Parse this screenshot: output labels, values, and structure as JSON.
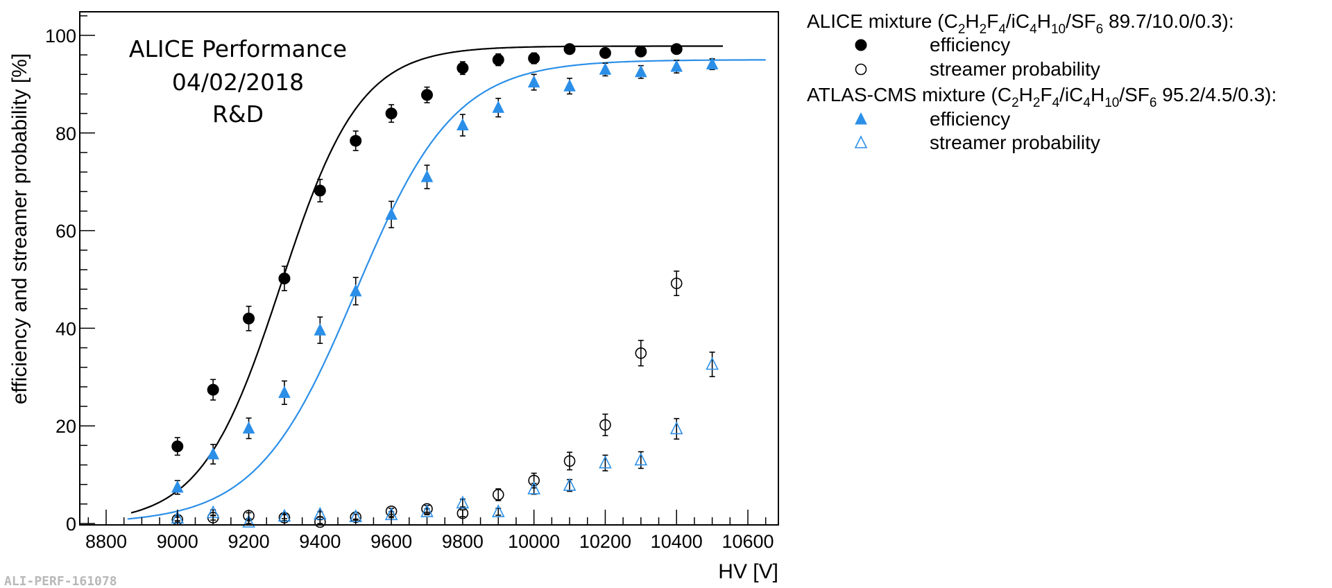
{
  "chart_data": {
    "type": "scatter",
    "title": "",
    "xlabel": "HV [V]",
    "ylabel": "efficiency and streamer probability [%]",
    "xlim": [
      8740,
      10690
    ],
    "ylim": [
      0,
      105
    ],
    "xticks": [
      8800,
      9000,
      9200,
      9400,
      9600,
      9800,
      10000,
      10200,
      10400,
      10600
    ],
    "yticks": [
      0,
      20,
      40,
      60,
      80,
      100
    ],
    "annotations": [
      "ALICE Performance",
      "04/02/2018",
      "R&D"
    ],
    "footer": "ALI-PERF-161078",
    "legend": {
      "placement": "right",
      "groups": [
        {
          "title": "ALICE mixture (C2H2F4/iC4H10/SF6 89.7/10.0/0.3):",
          "title_parts": [
            "ALICE mixture (C",
            "2",
            "H",
            "2",
            "F",
            "4",
            "/iC",
            "4",
            "H",
            "10",
            "/SF",
            "6",
            " 89.7/10.0/0.3):"
          ],
          "entries": [
            {
              "label": "efficiency",
              "marker": "filled-circle",
              "color": "#000000"
            },
            {
              "label": "streamer probability",
              "marker": "open-circle",
              "color": "#000000"
            }
          ]
        },
        {
          "title": "ATLAS-CMS mixture (C2H2F4/iC4H10/SF6 95.2/4.5/0.3):",
          "title_parts": [
            "ATLAS-CMS mixture (C",
            "2",
            "H",
            "2",
            "F",
            "4",
            "/iC",
            "4",
            "H",
            "10",
            "/SF",
            "6",
            " 95.2/4.5/0.3):"
          ],
          "entries": [
            {
              "label": "efficiency",
              "marker": "filled-triangle",
              "color": "#2b8fe8"
            },
            {
              "label": "streamer probability",
              "marker": "open-triangle",
              "color": "#2b8fe8"
            }
          ]
        }
      ]
    },
    "series": [
      {
        "name": "ALICE efficiency",
        "marker": "filled-circle",
        "color": "#000000",
        "points": [
          {
            "x": 9000,
            "y": 15.8,
            "err": 1.8
          },
          {
            "x": 9100,
            "y": 27.4,
            "err": 2.1
          },
          {
            "x": 9200,
            "y": 42.0,
            "err": 2.5
          },
          {
            "x": 9300,
            "y": 50.2,
            "err": 2.5
          },
          {
            "x": 9400,
            "y": 68.2,
            "err": 2.3
          },
          {
            "x": 9500,
            "y": 78.4,
            "err": 2.0
          },
          {
            "x": 9600,
            "y": 84.0,
            "err": 1.8
          },
          {
            "x": 9700,
            "y": 87.8,
            "err": 1.6
          },
          {
            "x": 9800,
            "y": 93.3,
            "err": 1.3
          },
          {
            "x": 9900,
            "y": 95.0,
            "err": 1.2
          },
          {
            "x": 10000,
            "y": 95.3,
            "err": 1.1
          },
          {
            "x": 10100,
            "y": 97.2,
            "err": 0.6
          },
          {
            "x": 10200,
            "y": 96.4,
            "err": 0.6
          },
          {
            "x": 10300,
            "y": 96.7,
            "err": 0.5
          },
          {
            "x": 10400,
            "y": 97.2,
            "err": 0.5
          }
        ]
      },
      {
        "name": "ALICE streamer probability",
        "marker": "open-circle",
        "color": "#000000",
        "points": [
          {
            "x": 9000,
            "y": 0.8,
            "err": 0.5
          },
          {
            "x": 9100,
            "y": 1.2,
            "err": 0.5
          },
          {
            "x": 9200,
            "y": 1.6,
            "err": 0.6
          },
          {
            "x": 9300,
            "y": 1.2,
            "err": 0.6
          },
          {
            "x": 9400,
            "y": 0.3,
            "err": 0.5
          },
          {
            "x": 9500,
            "y": 1.3,
            "err": 0.6
          },
          {
            "x": 9600,
            "y": 2.5,
            "err": 0.6
          },
          {
            "x": 9700,
            "y": 3.0,
            "err": 0.7
          },
          {
            "x": 9800,
            "y": 2.1,
            "err": 0.7
          },
          {
            "x": 9900,
            "y": 5.9,
            "err": 1.2
          },
          {
            "x": 10000,
            "y": 8.8,
            "err": 1.5
          },
          {
            "x": 10100,
            "y": 12.8,
            "err": 1.8
          },
          {
            "x": 10200,
            "y": 20.2,
            "err": 2.2
          },
          {
            "x": 10300,
            "y": 34.9,
            "err": 2.6
          },
          {
            "x": 10400,
            "y": 49.2,
            "err": 2.5
          }
        ]
      },
      {
        "name": "ATLAS-CMS efficiency",
        "marker": "filled-triangle",
        "color": "#2b8fe8",
        "points": [
          {
            "x": 9000,
            "y": 7.4,
            "err": 1.4
          },
          {
            "x": 9100,
            "y": 14.2,
            "err": 2.0
          },
          {
            "x": 9200,
            "y": 19.5,
            "err": 2.1
          },
          {
            "x": 9300,
            "y": 26.8,
            "err": 2.4
          },
          {
            "x": 9400,
            "y": 39.6,
            "err": 2.7
          },
          {
            "x": 9500,
            "y": 47.6,
            "err": 2.8
          },
          {
            "x": 9600,
            "y": 63.3,
            "err": 2.7
          },
          {
            "x": 9700,
            "y": 71.0,
            "err": 2.4
          },
          {
            "x": 9800,
            "y": 81.6,
            "err": 2.2
          },
          {
            "x": 9900,
            "y": 85.2,
            "err": 1.9
          },
          {
            "x": 10000,
            "y": 90.4,
            "err": 1.6
          },
          {
            "x": 10100,
            "y": 89.6,
            "err": 1.6
          },
          {
            "x": 10200,
            "y": 93.0,
            "err": 1.3
          },
          {
            "x": 10300,
            "y": 92.5,
            "err": 1.3
          },
          {
            "x": 10400,
            "y": 93.6,
            "err": 1.3
          },
          {
            "x": 10500,
            "y": 94.1,
            "err": 1.1
          }
        ]
      },
      {
        "name": "ATLAS-CMS streamer probability",
        "marker": "open-triangle",
        "color": "#2b8fe8",
        "points": [
          {
            "x": 9000,
            "y": 1.1,
            "err": 0.5
          },
          {
            "x": 9100,
            "y": 2.2,
            "err": 0.6
          },
          {
            "x": 9200,
            "y": 0.3,
            "err": 0.5
          },
          {
            "x": 9300,
            "y": 1.5,
            "err": 0.5
          },
          {
            "x": 9400,
            "y": 1.9,
            "err": 0.5
          },
          {
            "x": 9500,
            "y": 1.4,
            "err": 0.5
          },
          {
            "x": 9600,
            "y": 1.8,
            "err": 0.6
          },
          {
            "x": 9700,
            "y": 2.4,
            "err": 0.6
          },
          {
            "x": 9800,
            "y": 4.2,
            "err": 0.8
          },
          {
            "x": 9900,
            "y": 2.4,
            "err": 0.7
          },
          {
            "x": 10000,
            "y": 7.1,
            "err": 1.1
          },
          {
            "x": 10100,
            "y": 7.8,
            "err": 1.2
          },
          {
            "x": 10200,
            "y": 12.4,
            "err": 1.6
          },
          {
            "x": 10300,
            "y": 13.0,
            "err": 1.7
          },
          {
            "x": 10400,
            "y": 19.4,
            "err": 2.1
          },
          {
            "x": 10500,
            "y": 32.6,
            "err": 2.5
          }
        ]
      }
    ],
    "fits": [
      {
        "name": "ALICE efficiency fit",
        "color": "#000000",
        "x_range": [
          8870,
          10530
        ],
        "max": 97.8,
        "slope": 0.009,
        "hv50": 9290
      },
      {
        "name": "ATLAS-CMS efficiency fit",
        "color": "#2b8fe8",
        "x_range": [
          8860,
          10650
        ],
        "max": 95.0,
        "slope": 0.0072,
        "hv50": 9500
      }
    ]
  }
}
